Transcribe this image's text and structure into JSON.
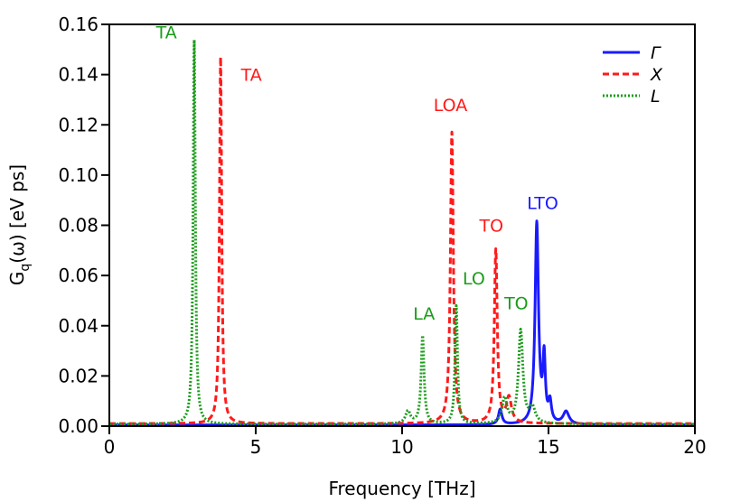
{
  "chart_data": {
    "type": "line",
    "title": "",
    "xlabel": "Frequency [THz]",
    "ylabel": "G",
    "ylabel_sub": "q",
    "ylabel_rest": "(ω)  [eV ps]",
    "xlim": [
      0,
      20
    ],
    "ylim": [
      0,
      0.16
    ],
    "xticks": [
      0,
      5,
      10,
      15,
      20
    ],
    "xtick_labels": [
      "0",
      "5",
      "10",
      "15",
      "20"
    ],
    "yticks": [
      0,
      0.02,
      0.04,
      0.06,
      0.08,
      0.1,
      0.12,
      0.14,
      0.16
    ],
    "ytick_labels": [
      "0.00",
      "0.02",
      "0.04",
      "0.06",
      "0.08",
      "0.10",
      "0.12",
      "0.14",
      "0.16"
    ],
    "legend_position": "top-right",
    "series": [
      {
        "name": "Γ",
        "color": "#1a1aff",
        "dash": "solid",
        "baseline": 0.0005,
        "peaks": [
          {
            "x": 13.35,
            "h": 0.006,
            "w": 0.07
          },
          {
            "x": 14.6,
            "h": 0.08,
            "w": 0.07
          },
          {
            "x": 14.85,
            "h": 0.025,
            "w": 0.05
          },
          {
            "x": 15.05,
            "h": 0.008,
            "w": 0.06
          },
          {
            "x": 15.6,
            "h": 0.005,
            "w": 0.12
          }
        ]
      },
      {
        "name": "X",
        "color": "#ff1a1a",
        "dash": "dashed",
        "baseline": 0.001,
        "peaks": [
          {
            "x": 3.8,
            "h": 0.146,
            "w": 0.045
          },
          {
            "x": 11.7,
            "h": 0.116,
            "w": 0.06
          },
          {
            "x": 13.2,
            "h": 0.069,
            "w": 0.06
          },
          {
            "x": 13.65,
            "h": 0.01,
            "w": 0.1
          }
        ]
      },
      {
        "name": "L",
        "color": "#1a9c1a",
        "dash": "dotted",
        "baseline": 0.0008,
        "peaks": [
          {
            "x": 2.9,
            "h": 0.153,
            "w": 0.045
          },
          {
            "x": 10.2,
            "h": 0.005,
            "w": 0.1
          },
          {
            "x": 10.7,
            "h": 0.035,
            "w": 0.06
          },
          {
            "x": 11.85,
            "h": 0.047,
            "w": 0.05
          },
          {
            "x": 13.5,
            "h": 0.01,
            "w": 0.1
          },
          {
            "x": 14.05,
            "h": 0.037,
            "w": 0.09
          },
          {
            "x": 14.45,
            "h": 0.006,
            "w": 0.12
          }
        ]
      }
    ],
    "annotations": [
      {
        "text": "TA",
        "x": 1.95,
        "y": 0.1545,
        "color": "#1a9c1a"
      },
      {
        "text": "TA",
        "x": 4.85,
        "y": 0.1375,
        "color": "#ff1a1a"
      },
      {
        "text": "LOA",
        "x": 11.65,
        "y": 0.1255,
        "color": "#ff1a1a"
      },
      {
        "text": "TO",
        "x": 13.05,
        "y": 0.0775,
        "color": "#ff1a1a"
      },
      {
        "text": "LTO",
        "x": 14.8,
        "y": 0.0865,
        "color": "#1a1aff"
      },
      {
        "text": "LO",
        "x": 12.45,
        "y": 0.0565,
        "color": "#1a9c1a"
      },
      {
        "text": "LA",
        "x": 10.75,
        "y": 0.0425,
        "color": "#1a9c1a"
      },
      {
        "text": "TO",
        "x": 13.9,
        "y": 0.0465,
        "color": "#1a9c1a"
      }
    ]
  }
}
